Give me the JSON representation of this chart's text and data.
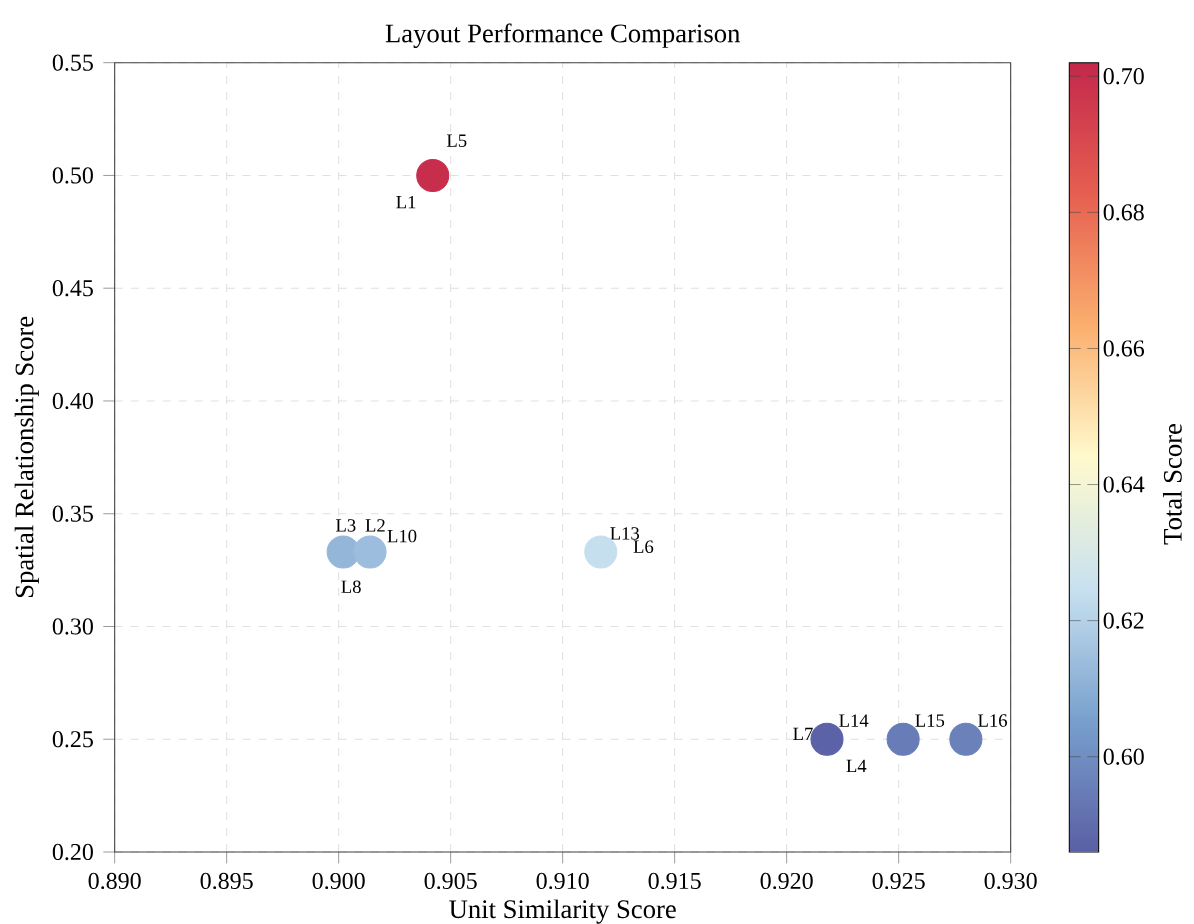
{
  "chart_data": {
    "type": "scatter",
    "title": "Layout Performance Comparison",
    "xlabel": "Unit Similarity Score",
    "ylabel": "Spatial Relationship Score",
    "clabel": "Total Score",
    "x": [
      0.9042,
      0.9002,
      0.9014,
      0.9117,
      0.9218,
      0.9252,
      0.928
    ],
    "values": [
      0.5,
      0.333,
      0.333,
      0.333,
      0.25,
      0.25,
      0.25
    ],
    "cvalues": [
      0.7,
      0.612,
      0.614,
      0.624,
      0.587,
      0.595,
      0.596
    ],
    "marker": "circle",
    "grid": true,
    "xlim": [
      0.89,
      0.93
    ],
    "ylim": [
      0.2,
      0.55
    ],
    "clim": [
      0.586,
      0.702
    ],
    "xticks": [
      {
        "value": 0.89,
        "label": "0.890"
      },
      {
        "value": 0.895,
        "label": "0.895"
      },
      {
        "value": 0.9,
        "label": "0.900"
      },
      {
        "value": 0.905,
        "label": "0.905"
      },
      {
        "value": 0.91,
        "label": "0.910"
      },
      {
        "value": 0.915,
        "label": "0.915"
      },
      {
        "value": 0.92,
        "label": "0.920"
      },
      {
        "value": 0.925,
        "label": "0.925"
      },
      {
        "value": 0.93,
        "label": "0.930"
      }
    ],
    "yticks": [
      {
        "value": 0.2,
        "label": "0.20"
      },
      {
        "value": 0.25,
        "label": "0.25"
      },
      {
        "value": 0.3,
        "label": "0.30"
      },
      {
        "value": 0.35,
        "label": "0.35"
      },
      {
        "value": 0.4,
        "label": "0.40"
      },
      {
        "value": 0.45,
        "label": "0.45"
      },
      {
        "value": 0.5,
        "label": "0.50"
      },
      {
        "value": 0.55,
        "label": "0.55"
      }
    ],
    "cticks": [
      {
        "value": 0.6,
        "label": "0.60"
      },
      {
        "value": 0.62,
        "label": "0.62"
      },
      {
        "value": 0.64,
        "label": "0.64"
      },
      {
        "value": 0.66,
        "label": "0.66"
      },
      {
        "value": 0.68,
        "label": "0.68"
      },
      {
        "value": 0.7,
        "label": "0.70"
      }
    ],
    "annotations": [
      {
        "text": "L1",
        "x": 0.9042,
        "y": 0.5
      },
      {
        "text": "L2",
        "x": 0.9014,
        "y": 0.333
      },
      {
        "text": "L3",
        "x": 0.9002,
        "y": 0.333
      },
      {
        "text": "L4",
        "x": 0.9218,
        "y": 0.25
      },
      {
        "text": "L5",
        "x": 0.9042,
        "y": 0.5
      },
      {
        "text": "L6",
        "x": 0.9117,
        "y": 0.333
      },
      {
        "text": "L7",
        "x": 0.9218,
        "y": 0.25
      },
      {
        "text": "L8",
        "x": 0.9002,
        "y": 0.333
      },
      {
        "text": "L10",
        "x": 0.9014,
        "y": 0.333
      },
      {
        "text": "L13",
        "x": 0.9117,
        "y": 0.333
      },
      {
        "text": "L14",
        "x": 0.9218,
        "y": 0.25
      },
      {
        "text": "L15",
        "x": 0.9252,
        "y": 0.25
      },
      {
        "text": "L16",
        "x": 0.928,
        "y": 0.25
      }
    ]
  }
}
